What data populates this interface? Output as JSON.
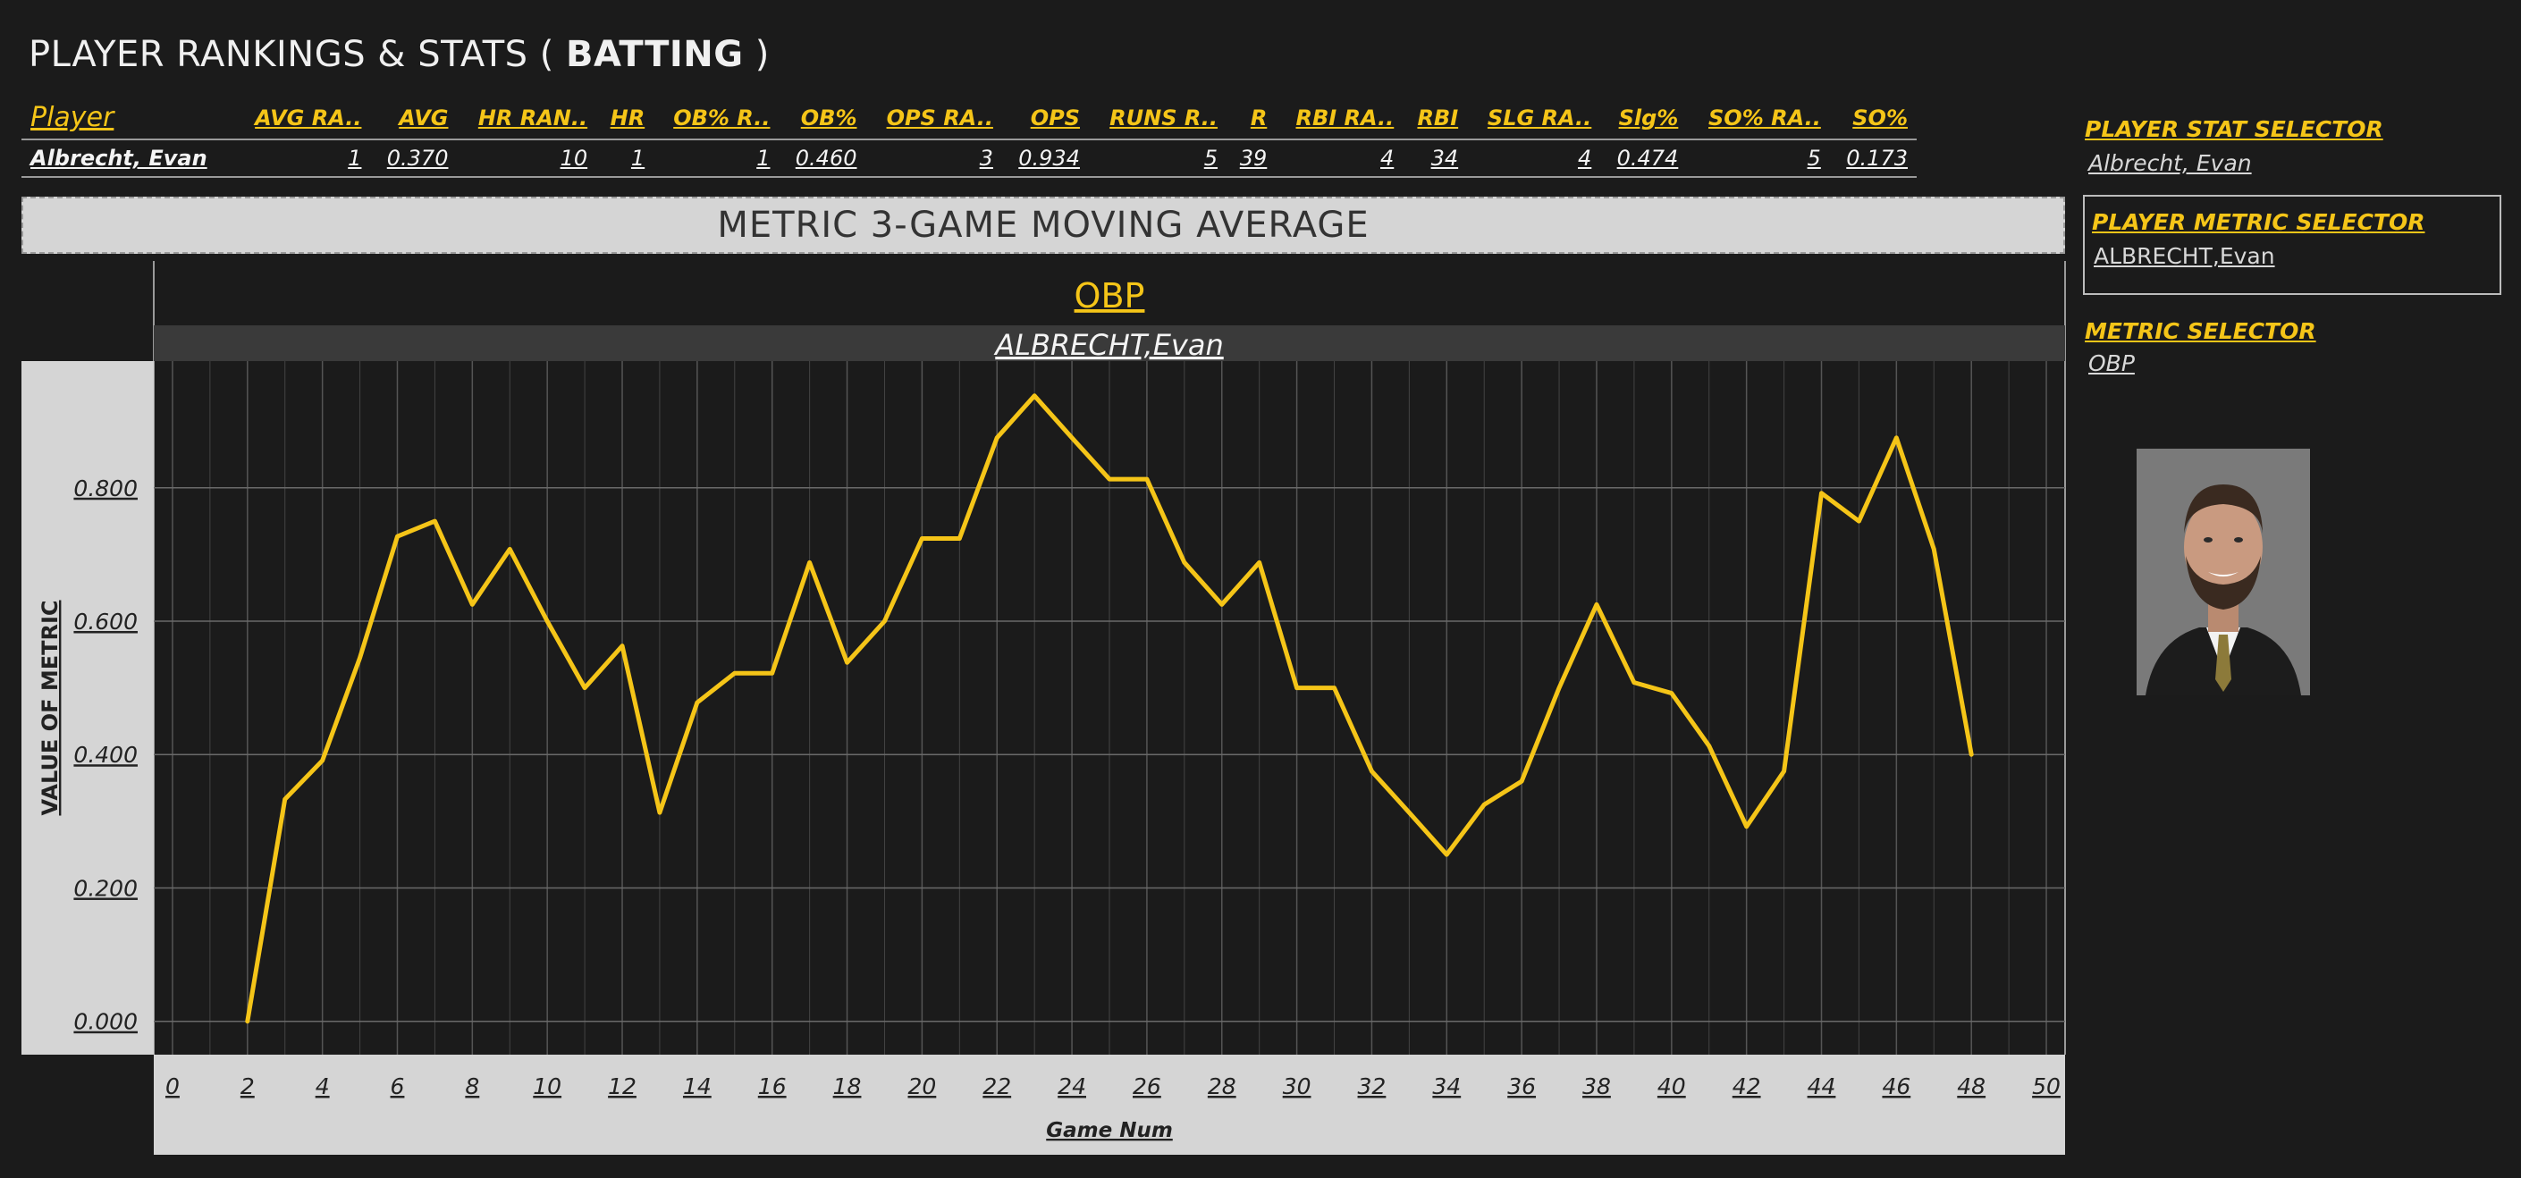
{
  "header": {
    "title_prefix": "PLAYER RANKINGS & STATS ( ",
    "title_bold": "BATTING",
    "title_suffix": " )"
  },
  "stats_table": {
    "columns": [
      "Player",
      "AVG RA..",
      "AVG",
      "HR RAN..",
      "HR",
      "OB% R..",
      "OB%",
      "OPS RA..",
      "OPS",
      "RUNS R..",
      "R",
      "RBI RA..",
      "RBI",
      "SLG RA..",
      "Slg%",
      "SO% RA..",
      "SO%"
    ],
    "rows": [
      [
        "Albrecht, Evan",
        "1",
        "0.370",
        "10",
        "1",
        "1",
        "0.460",
        "3",
        "0.934",
        "5",
        "39",
        "4",
        "34",
        "4",
        "0.474",
        "5",
        "0.173"
      ]
    ]
  },
  "banner": {
    "title": "METRIC  3-GAME MOVING AVERAGE"
  },
  "selectors": {
    "stat_label": "PLAYER  STAT SELECTOR",
    "stat_value": "Albrecht, Evan",
    "player_metric_label": "PLAYER  METRIC SELECTOR",
    "player_metric_value": "ALBRECHT,Evan",
    "metric_label": "METRIC SELECTOR",
    "metric_value": "OBP"
  },
  "colors": {
    "line": "#f5c518",
    "background": "#1b1b1b",
    "panel": "#d5d5d5"
  },
  "chart_data": {
    "type": "line",
    "title": "OBP",
    "subtitle": "ALBRECHT,Evan",
    "xlabel": "Game Num",
    "ylabel": "VALUE OF METRIC",
    "xlim": [
      -0.5,
      50.5
    ],
    "ylim": [
      -0.05,
      0.99
    ],
    "x_ticks": [
      0,
      2,
      4,
      6,
      8,
      10,
      12,
      14,
      16,
      18,
      20,
      22,
      24,
      26,
      28,
      30,
      32,
      34,
      36,
      38,
      40,
      42,
      44,
      46,
      48,
      50
    ],
    "y_ticks": [
      0.0,
      0.2,
      0.4,
      0.6,
      0.8
    ],
    "y_tick_labels": [
      "0.000",
      "0.200",
      "0.400",
      "0.600",
      "0.800"
    ],
    "grid": true,
    "series": [
      {
        "x": [
          2,
          3,
          4,
          5,
          6,
          7,
          8,
          9,
          10,
          11,
          12,
          13,
          14,
          15,
          16,
          17,
          18,
          19,
          20,
          21,
          22,
          23,
          24,
          25,
          26,
          27,
          28,
          29,
          30,
          31,
          32,
          33,
          34,
          35,
          36,
          37,
          38,
          39,
          40,
          41,
          42,
          43,
          44,
          45,
          46,
          47,
          48
        ],
        "values": [
          0.0,
          0.333,
          0.391,
          0.545,
          0.727,
          0.75,
          0.625,
          0.708,
          0.6,
          0.5,
          0.563,
          0.313,
          0.478,
          0.522,
          0.522,
          0.688,
          0.538,
          0.6,
          0.724,
          0.724,
          0.875,
          0.938,
          0.875,
          0.813,
          0.813,
          0.688,
          0.625,
          0.688,
          0.5,
          0.5,
          0.375,
          0.313,
          0.25,
          0.325,
          0.36,
          0.5,
          0.625,
          0.508,
          0.492,
          0.413,
          0.292,
          0.375,
          0.792,
          0.75,
          0.875,
          0.708,
          0.4
        ]
      }
    ]
  }
}
